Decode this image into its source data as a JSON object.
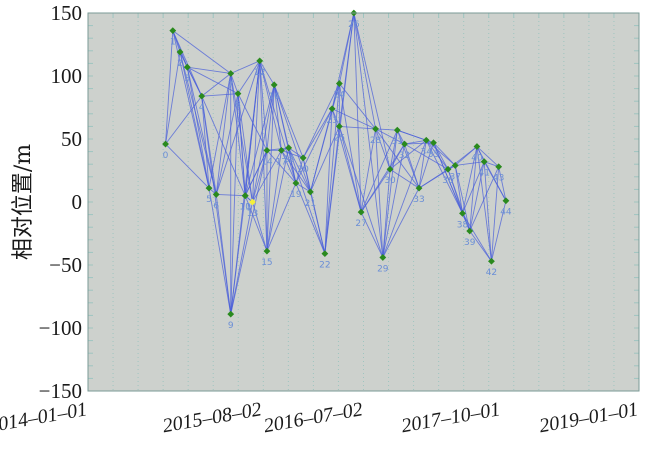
{
  "chart_data": {
    "type": "scatter",
    "title": "",
    "xlabel": "",
    "ylabel": "相对位置/m",
    "xlim": [
      "2014-01-01",
      "2019-01-01"
    ],
    "ylim": [
      -150,
      150
    ],
    "x_ticks": [
      "2014-01-01",
      "2015-08-02",
      "2016-07-02",
      "2017-10-01",
      "2019-01-01"
    ],
    "y_ticks": [
      150,
      100,
      50,
      0,
      -50,
      -100,
      -150
    ],
    "colors": {
      "background": "#cdd1cd",
      "grid": "#9ec5c0",
      "edge": "#4a5fd9",
      "node": "#2a8a1e",
      "highlight_node": "#f4ef3a",
      "node_label": "#6b8fd6"
    },
    "grid": true,
    "nodes": [
      {
        "label": "0",
        "date": "2014-09-15",
        "y": 46
      },
      {
        "label": "1",
        "date": "2014-10-09",
        "y": 136
      },
      {
        "label": "2",
        "date": "2014-11-02",
        "y": 119
      },
      {
        "label": "3",
        "date": "2014-11-26",
        "y": 107
      },
      {
        "label": "4",
        "date": "2015-01-13",
        "y": 84
      },
      {
        "label": "5",
        "date": "2015-02-06",
        "y": 11
      },
      {
        "label": "6",
        "date": "2015-03-02",
        "y": 6
      },
      {
        "label": "7",
        "date": "2015-04-19",
        "y": 102
      },
      {
        "label": "8",
        "date": "2015-05-13",
        "y": 86
      },
      {
        "label": "9",
        "date": "2015-04-19",
        "y": -89
      },
      {
        "label": "10",
        "date": "2015-06-06",
        "y": 5
      },
      {
        "label": "11",
        "date": "2015-06-06",
        "y": 5
      },
      {
        "label": "12",
        "date": "2015-07-24",
        "y": 112
      },
      {
        "label": "13",
        "date": "2015-06-30",
        "y": 0
      },
      {
        "label": "14",
        "date": "2015-08-17",
        "y": 41
      },
      {
        "label": "15",
        "date": "2015-08-17",
        "y": -39
      },
      {
        "label": "16",
        "date": "2015-09-10",
        "y": 93
      },
      {
        "label": "17",
        "date": "2015-10-04",
        "y": 41
      },
      {
        "label": "18",
        "date": "2015-10-28",
        "y": 43
      },
      {
        "label": "19",
        "date": "2015-11-21",
        "y": 15
      },
      {
        "label": "20",
        "date": "2015-12-15",
        "y": 35
      },
      {
        "label": "21",
        "date": "2016-01-08",
        "y": 8
      },
      {
        "label": "22",
        "date": "2016-02-25",
        "y": -41
      },
      {
        "label": "23",
        "date": "2016-03-20",
        "y": 74
      },
      {
        "label": "24",
        "date": "2016-04-13",
        "y": 94
      },
      {
        "label": "25",
        "date": "2016-04-13",
        "y": 60
      },
      {
        "label": "26",
        "date": "2016-05-31",
        "y": 150
      },
      {
        "label": "27",
        "date": "2016-06-24",
        "y": -8
      },
      {
        "label": "28",
        "date": "2016-08-11",
        "y": 58
      },
      {
        "label": "29",
        "date": "2016-09-04",
        "y": -44
      },
      {
        "label": "30",
        "date": "2016-09-28",
        "y": 26
      },
      {
        "label": "31",
        "date": "2016-10-22",
        "y": 57
      },
      {
        "label": "32",
        "date": "2016-11-15",
        "y": 46
      },
      {
        "label": "33",
        "date": "2017-01-02",
        "y": 11
      },
      {
        "label": "34",
        "date": "2017-01-26",
        "y": 49
      },
      {
        "label": "35",
        "date": "2017-02-19",
        "y": 47
      },
      {
        "label": "36",
        "date": "2017-04-08",
        "y": 26
      },
      {
        "label": "37",
        "date": "2017-05-02",
        "y": 29
      },
      {
        "label": "38",
        "date": "2017-05-26",
        "y": -9
      },
      {
        "label": "39",
        "date": "2017-06-19",
        "y": -23
      },
      {
        "label": "40",
        "date": "2017-07-13",
        "y": 44
      },
      {
        "label": "41",
        "date": "2017-08-06",
        "y": 32
      },
      {
        "label": "42",
        "date": "2017-08-30",
        "y": -47
      },
      {
        "label": "43",
        "date": "2017-09-23",
        "y": 28
      },
      {
        "label": "44",
        "date": "2017-10-17",
        "y": 1
      }
    ],
    "edges": [
      [
        0,
        1
      ],
      [
        0,
        2
      ],
      [
        0,
        4
      ],
      [
        0,
        5
      ],
      [
        1,
        2
      ],
      [
        1,
        3
      ],
      [
        1,
        4
      ],
      [
        1,
        5
      ],
      [
        1,
        7
      ],
      [
        2,
        3
      ],
      [
        2,
        4
      ],
      [
        2,
        5
      ],
      [
        2,
        6
      ],
      [
        3,
        4
      ],
      [
        3,
        5
      ],
      [
        3,
        6
      ],
      [
        3,
        7
      ],
      [
        3,
        8
      ],
      [
        4,
        5
      ],
      [
        4,
        6
      ],
      [
        4,
        7
      ],
      [
        4,
        8
      ],
      [
        4,
        9
      ],
      [
        4,
        10
      ],
      [
        5,
        6
      ],
      [
        5,
        7
      ],
      [
        5,
        9
      ],
      [
        6,
        7
      ],
      [
        6,
        8
      ],
      [
        6,
        9
      ],
      [
        6,
        10
      ],
      [
        6,
        12
      ],
      [
        7,
        8
      ],
      [
        7,
        9
      ],
      [
        7,
        10
      ],
      [
        7,
        12
      ],
      [
        7,
        13
      ],
      [
        8,
        9
      ],
      [
        8,
        10
      ],
      [
        8,
        11
      ],
      [
        8,
        12
      ],
      [
        8,
        13
      ],
      [
        8,
        14
      ],
      [
        9,
        10
      ],
      [
        9,
        12
      ],
      [
        9,
        13
      ],
      [
        9,
        14
      ],
      [
        10,
        12
      ],
      [
        10,
        13
      ],
      [
        10,
        14
      ],
      [
        10,
        15
      ],
      [
        11,
        12
      ],
      [
        11,
        13
      ],
      [
        11,
        14
      ],
      [
        11,
        16
      ],
      [
        12,
        13
      ],
      [
        12,
        14
      ],
      [
        12,
        15
      ],
      [
        12,
        16
      ],
      [
        12,
        17
      ],
      [
        12,
        19
      ],
      [
        13,
        14
      ],
      [
        13,
        15
      ],
      [
        13,
        16
      ],
      [
        13,
        17
      ],
      [
        14,
        15
      ],
      [
        14,
        16
      ],
      [
        14,
        17
      ],
      [
        14,
        18
      ],
      [
        14,
        19
      ],
      [
        15,
        16
      ],
      [
        15,
        17
      ],
      [
        15,
        18
      ],
      [
        15,
        19
      ],
      [
        16,
        17
      ],
      [
        16,
        18
      ],
      [
        16,
        19
      ],
      [
        16,
        20
      ],
      [
        16,
        21
      ],
      [
        17,
        18
      ],
      [
        17,
        19
      ],
      [
        17,
        20
      ],
      [
        17,
        21
      ],
      [
        18,
        19
      ],
      [
        18,
        20
      ],
      [
        18,
        21
      ],
      [
        18,
        22
      ],
      [
        19,
        20
      ],
      [
        19,
        21
      ],
      [
        19,
        22
      ],
      [
        19,
        23
      ],
      [
        20,
        21
      ],
      [
        20,
        22
      ],
      [
        20,
        23
      ],
      [
        20,
        24
      ],
      [
        21,
        22
      ],
      [
        21,
        23
      ],
      [
        21,
        24
      ],
      [
        21,
        25
      ],
      [
        22,
        23
      ],
      [
        22,
        24
      ],
      [
        22,
        25
      ],
      [
        22,
        26
      ],
      [
        23,
        24
      ],
      [
        23,
        25
      ],
      [
        23,
        26
      ],
      [
        23,
        27
      ],
      [
        23,
        28
      ],
      [
        24,
        25
      ],
      [
        24,
        26
      ],
      [
        24,
        27
      ],
      [
        24,
        28
      ],
      [
        25,
        26
      ],
      [
        25,
        27
      ],
      [
        25,
        28
      ],
      [
        25,
        29
      ],
      [
        26,
        27
      ],
      [
        26,
        28
      ],
      [
        26,
        29
      ],
      [
        26,
        30
      ],
      [
        27,
        28
      ],
      [
        27,
        29
      ],
      [
        27,
        30
      ],
      [
        27,
        31
      ],
      [
        27,
        32
      ],
      [
        28,
        29
      ],
      [
        28,
        30
      ],
      [
        28,
        31
      ],
      [
        28,
        32
      ],
      [
        28,
        33
      ],
      [
        29,
        30
      ],
      [
        29,
        31
      ],
      [
        29,
        32
      ],
      [
        29,
        33
      ],
      [
        29,
        34
      ],
      [
        30,
        31
      ],
      [
        30,
        32
      ],
      [
        30,
        33
      ],
      [
        30,
        34
      ],
      [
        31,
        32
      ],
      [
        31,
        33
      ],
      [
        31,
        34
      ],
      [
        31,
        35
      ],
      [
        32,
        33
      ],
      [
        32,
        34
      ],
      [
        32,
        35
      ],
      [
        32,
        36
      ],
      [
        33,
        34
      ],
      [
        33,
        35
      ],
      [
        33,
        36
      ],
      [
        33,
        37
      ],
      [
        34,
        35
      ],
      [
        34,
        36
      ],
      [
        34,
        37
      ],
      [
        34,
        38
      ],
      [
        35,
        36
      ],
      [
        35,
        37
      ],
      [
        35,
        38
      ],
      [
        35,
        39
      ],
      [
        36,
        37
      ],
      [
        36,
        38
      ],
      [
        36,
        39
      ],
      [
        36,
        40
      ],
      [
        37,
        38
      ],
      [
        37,
        39
      ],
      [
        37,
        40
      ],
      [
        37,
        41
      ],
      [
        38,
        39
      ],
      [
        38,
        40
      ],
      [
        38,
        41
      ],
      [
        38,
        42
      ],
      [
        39,
        40
      ],
      [
        39,
        41
      ],
      [
        39,
        42
      ],
      [
        39,
        43
      ],
      [
        40,
        41
      ],
      [
        40,
        42
      ],
      [
        40,
        43
      ],
      [
        40,
        44
      ],
      [
        41,
        42
      ],
      [
        41,
        43
      ],
      [
        41,
        44
      ],
      [
        42,
        43
      ],
      [
        42,
        44
      ],
      [
        43,
        44
      ]
    ],
    "highlight_node": "13"
  }
}
